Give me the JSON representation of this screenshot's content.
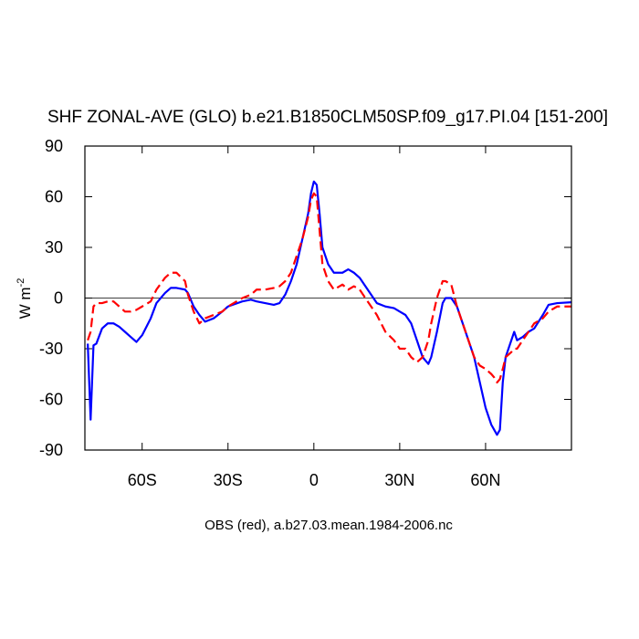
{
  "chart_data": {
    "type": "line",
    "title": "SHF ZONAL-AVE (GLO) b.e21.B1850CLM50SP.f09_g17.PI.04 [151-200]",
    "ylabel": {
      "text": "W m",
      "superscript": "-2"
    },
    "footer": "OBS (red), a.b27.03.mean.1984-2006.nc",
    "x": [
      -79,
      -78,
      -77,
      -76,
      -74,
      -72,
      -70,
      -68,
      -66,
      -64,
      -62,
      -60,
      -57,
      -55,
      -52,
      -50,
      -48,
      -45,
      -44,
      -42,
      -40,
      -38,
      -35,
      -32,
      -30,
      -25,
      -22,
      -20,
      -17,
      -14,
      -12,
      -10,
      -8,
      -6,
      -4,
      -2,
      -1,
      0,
      1,
      2,
      3,
      5,
      7,
      10,
      12,
      14,
      16,
      18,
      20,
      22,
      25,
      28,
      30,
      32,
      34,
      36,
      38,
      40,
      41,
      43,
      45,
      46,
      48,
      50,
      52,
      54,
      56,
      58,
      60,
      62,
      63,
      64,
      65,
      66,
      67,
      69,
      70,
      71,
      73,
      75,
      77,
      80,
      82,
      85,
      90
    ],
    "series": [
      {
        "color": "#0000ff",
        "style": "solid",
        "values": [
          -27,
          -72,
          -28,
          -27,
          -18,
          -15,
          -15,
          -17,
          -20,
          -23,
          -26,
          -22,
          -12,
          -3,
          3,
          6,
          6,
          5,
          3,
          -5,
          -10,
          -14,
          -12,
          -8,
          -5,
          -2,
          -1,
          -2,
          -3,
          -4,
          -3,
          2,
          10,
          20,
          35,
          50,
          62,
          69,
          67,
          50,
          30,
          20,
          15,
          15,
          17,
          15,
          12,
          7,
          2,
          -3,
          -5,
          -6,
          -8,
          -10,
          -15,
          -25,
          -35,
          -39,
          -35,
          -20,
          -3,
          0,
          0,
          -5,
          -15,
          -25,
          -35,
          -50,
          -65,
          -75,
          -78,
          -81,
          -78,
          -50,
          -35,
          -25,
          -20,
          -25,
          -23,
          -20,
          -18,
          -10,
          -4,
          -3,
          -2.5
        ]
      },
      {
        "color": "#ff0000",
        "style": "dashed",
        "values": [
          -25,
          -20,
          -5,
          -3,
          -3,
          -2,
          -2,
          -5,
          -8,
          -8,
          -7,
          -5,
          -2,
          5,
          12,
          15,
          15,
          10,
          2,
          -8,
          -15,
          -12,
          -10,
          -8,
          -5,
          0,
          2,
          5,
          5,
          6,
          7,
          10,
          15,
          25,
          35,
          48,
          58,
          62,
          60,
          40,
          20,
          10,
          5,
          8,
          5,
          7,
          5,
          0,
          -5,
          -10,
          -20,
          -25,
          -30,
          -30,
          -35,
          -38,
          -35,
          -25,
          -15,
          0,
          10,
          10,
          8,
          -5,
          -15,
          -25,
          -35,
          -40,
          -42,
          -45,
          -47,
          -50,
          -48,
          -42,
          -35,
          -32,
          -30,
          -30,
          -25,
          -20,
          -15,
          -12,
          -8,
          -5,
          -5
        ]
      }
    ],
    "xlim": [
      -80,
      90
    ],
    "xticks": [
      {
        "value": -60,
        "label": "60S"
      },
      {
        "value": -30,
        "label": "30S"
      },
      0,
      {
        "value": 30,
        "label": "30N"
      },
      {
        "value": 60,
        "label": "60N"
      }
    ],
    "ylim": [
      -90,
      90
    ],
    "yticks": [
      -90,
      -60,
      -30,
      0,
      30,
      60,
      90
    ],
    "reference_line": 0,
    "grid": false
  }
}
